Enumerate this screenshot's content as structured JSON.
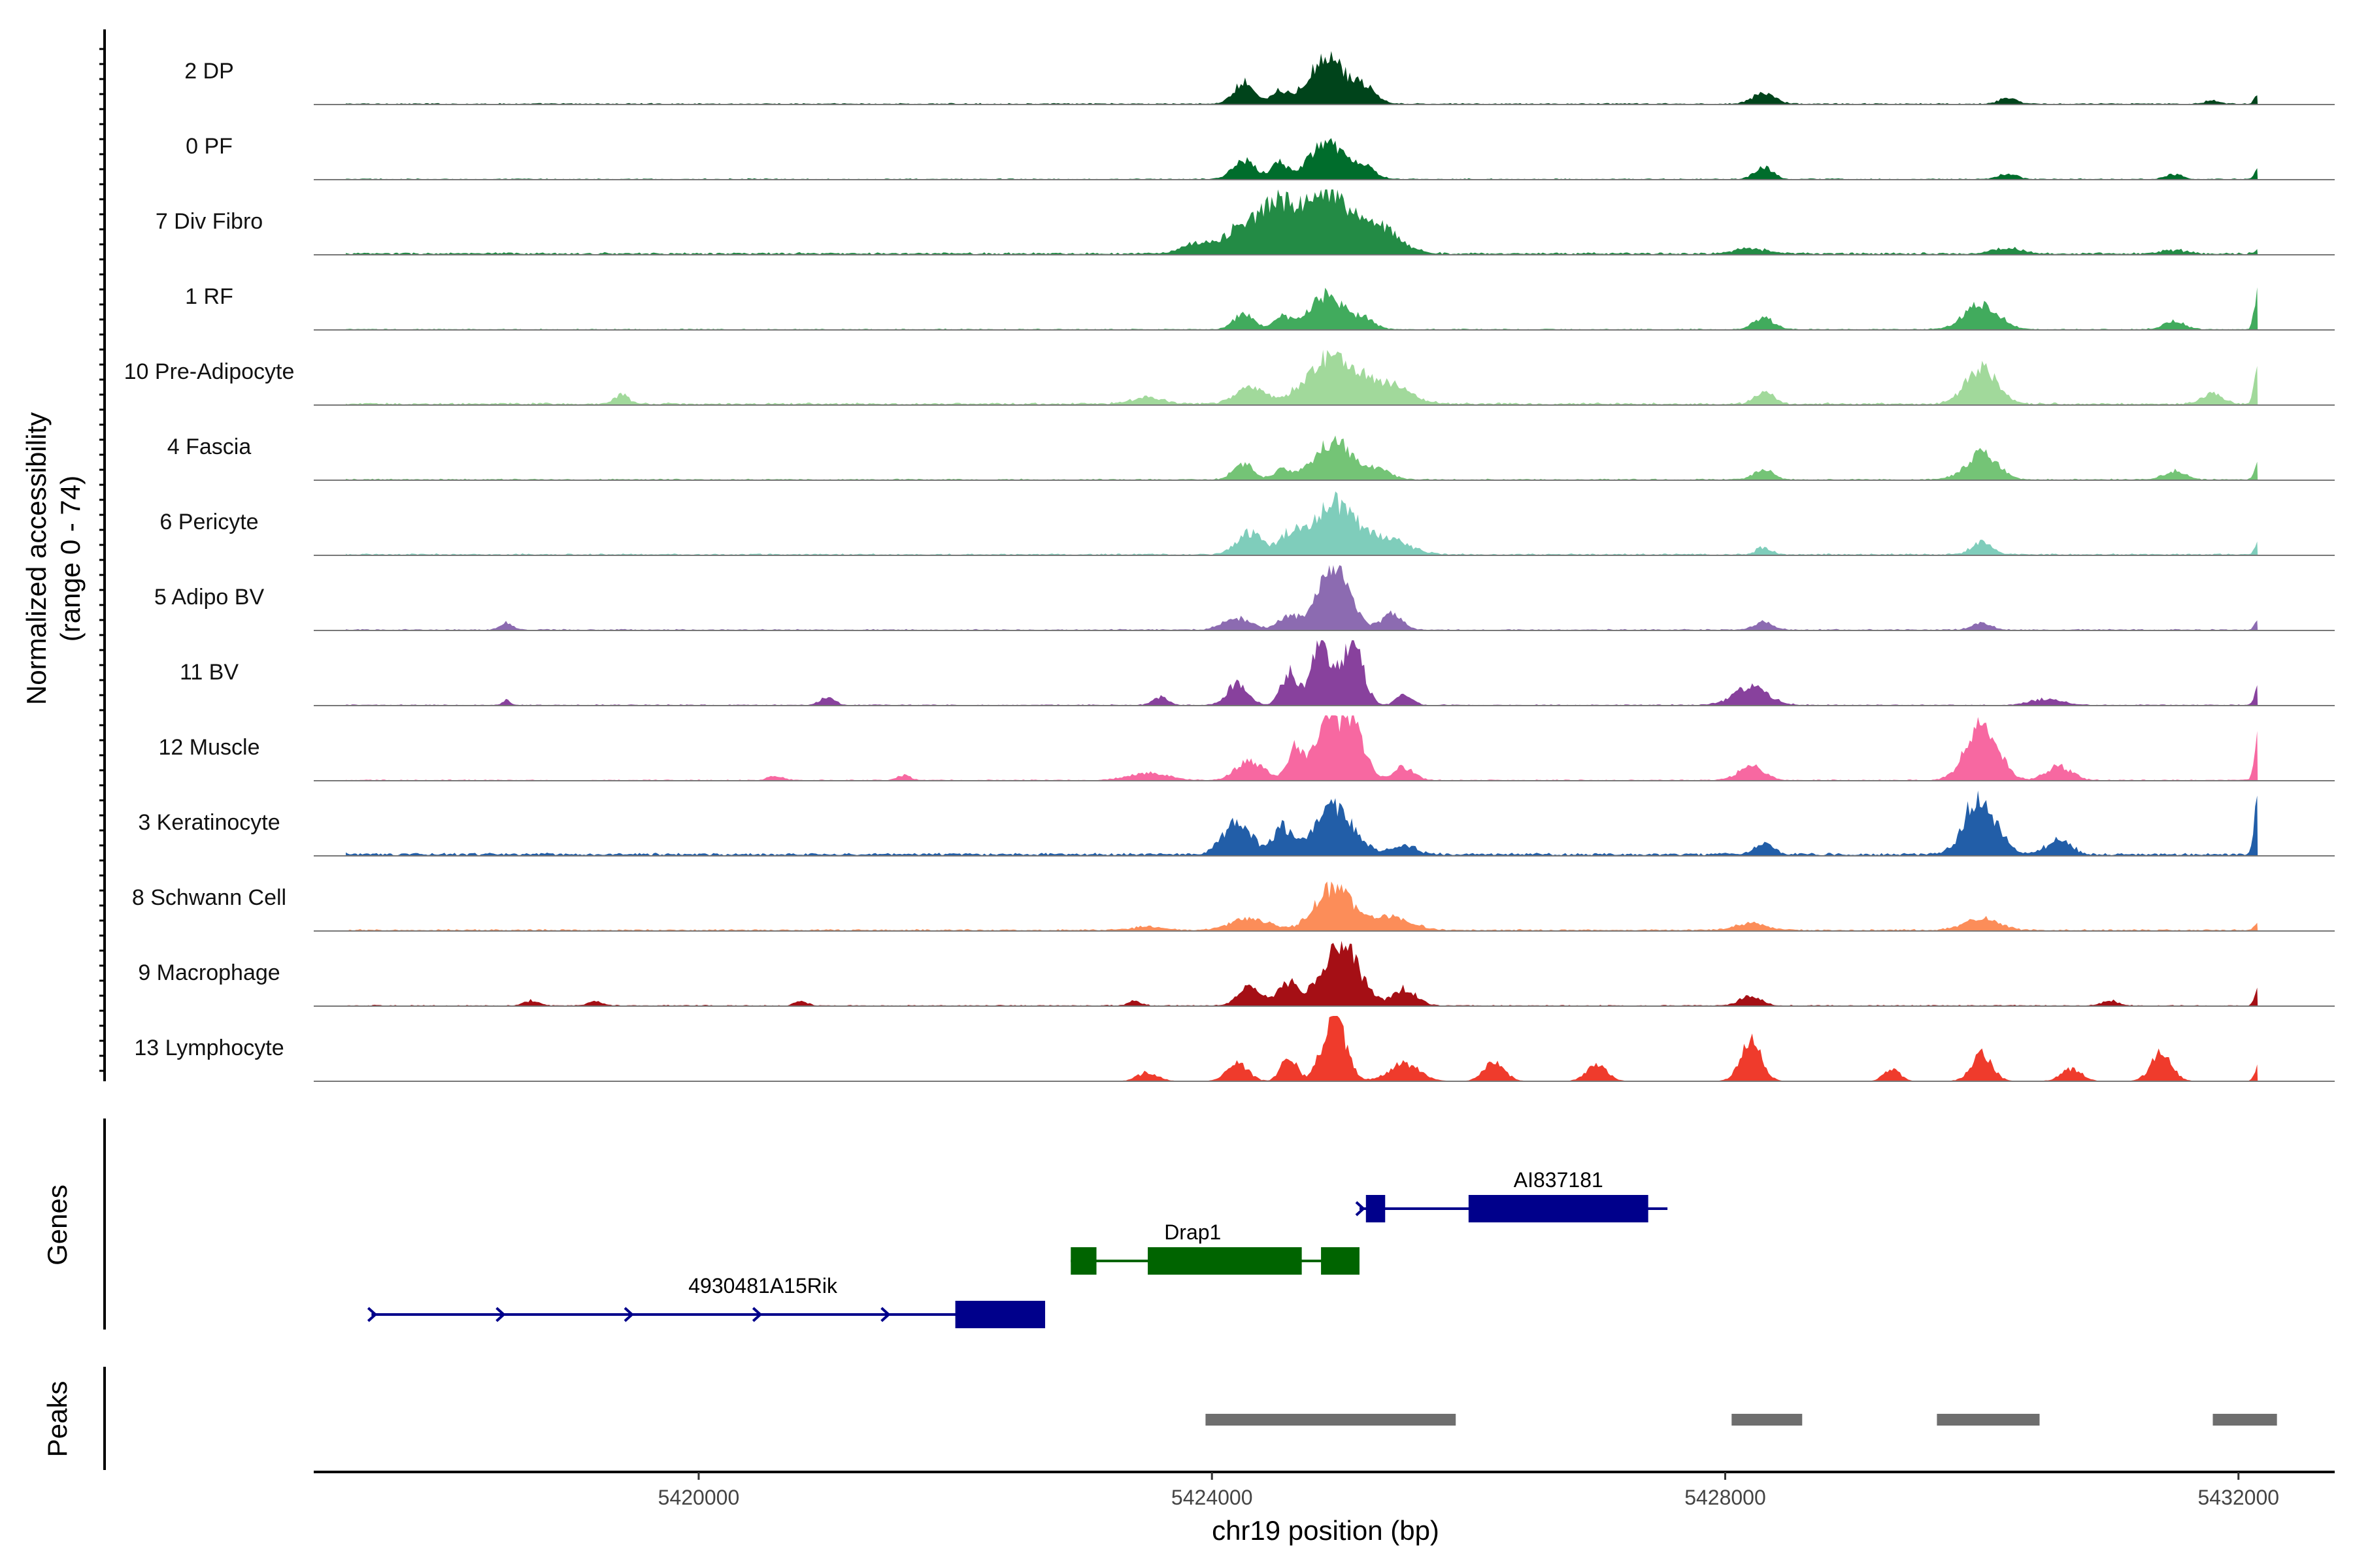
{
  "chart_data": {
    "type": "area",
    "title": "",
    "xlabel": "chr19 position (bp)",
    "ylabel": "Normalized accessibility",
    "ylabel_range": "(range 0 - 74)",
    "xlim": [
      5417000,
      5432750
    ],
    "ylim": [
      0,
      74
    ],
    "x_ticks": [
      5420000,
      5424000,
      5428000,
      5432000
    ],
    "x_tick_labels": [
      "5420000",
      "5424000",
      "5428000",
      "5432000"
    ],
    "genes_label": "Genes",
    "peaks_label": "Peaks",
    "series": [
      {
        "name": "2 DP",
        "color": "#00441b",
        "peaks": [
          [
            5424250,
            25,
            80
          ],
          [
            5424520,
            14,
            60
          ],
          [
            5424900,
            52,
            150
          ],
          [
            5425200,
            15,
            80
          ],
          [
            5428300,
            12,
            90
          ],
          [
            5430200,
            7,
            70
          ],
          [
            5431800,
            4,
            60
          ],
          [
            5432150,
            10,
            25
          ]
        ],
        "base": 1.2
      },
      {
        "name": "0 PF",
        "color": "#006d2c",
        "peaks": [
          [
            5424250,
            22,
            90
          ],
          [
            5424520,
            18,
            60
          ],
          [
            5424900,
            42,
            140
          ],
          [
            5425200,
            12,
            80
          ],
          [
            5428300,
            14,
            70
          ],
          [
            5430200,
            6,
            70
          ],
          [
            5431500,
            5,
            70
          ],
          [
            5432150,
            12,
            25
          ]
        ],
        "base": 1.0
      },
      {
        "name": "7 Div Fibro",
        "color": "#238b45",
        "peaks": [
          [
            5423900,
            12,
            130
          ],
          [
            5424200,
            25,
            110
          ],
          [
            5424500,
            58,
            140
          ],
          [
            5424900,
            74,
            160
          ],
          [
            5425300,
            30,
            160
          ],
          [
            5428200,
            6,
            120
          ],
          [
            5430200,
            6,
            110
          ],
          [
            5431500,
            4,
            100
          ],
          [
            5432150,
            5,
            25
          ]
        ],
        "base": 2.0
      },
      {
        "name": "1 RF",
        "color": "#41ab5d",
        "peaks": [
          [
            5424250,
            18,
            80
          ],
          [
            5424550,
            14,
            60
          ],
          [
            5424900,
            40,
            140
          ],
          [
            5425200,
            10,
            80
          ],
          [
            5428300,
            13,
            80
          ],
          [
            5430000,
            30,
            130
          ],
          [
            5431500,
            10,
            80
          ],
          [
            5432150,
            48,
            25
          ]
        ],
        "base": 1.0
      },
      {
        "name": "10 Pre-Adipocyte",
        "color": "#a1d99b",
        "peaks": [
          [
            5419400,
            12,
            50
          ],
          [
            5423500,
            8,
            120
          ],
          [
            5424300,
            18,
            120
          ],
          [
            5424950,
            55,
            200
          ],
          [
            5425400,
            20,
            150
          ],
          [
            5428300,
            15,
            70
          ],
          [
            5430000,
            42,
            120
          ],
          [
            5431800,
            12,
            80
          ],
          [
            5432150,
            42,
            25
          ]
        ],
        "base": 2.0
      },
      {
        "name": "4 Fascia",
        "color": "#74c476",
        "peaks": [
          [
            5424250,
            18,
            80
          ],
          [
            5424550,
            12,
            60
          ],
          [
            5424950,
            45,
            150
          ],
          [
            5425300,
            10,
            100
          ],
          [
            5428300,
            13,
            70
          ],
          [
            5430000,
            30,
            120
          ],
          [
            5431500,
            10,
            80
          ],
          [
            5432150,
            20,
            25
          ]
        ],
        "base": 1.2
      },
      {
        "name": "6 Pericyte",
        "color": "#7fcdbb",
        "peaks": [
          [
            5424300,
            25,
            100
          ],
          [
            5424600,
            18,
            80
          ],
          [
            5424950,
            60,
            180
          ],
          [
            5425400,
            15,
            150
          ],
          [
            5428300,
            8,
            60
          ],
          [
            5430000,
            15,
            80
          ],
          [
            5432150,
            15,
            25
          ]
        ],
        "base": 1.5
      },
      {
        "name": "5 Adipo BV",
        "color": "#8c6bb1",
        "peaks": [
          [
            5418500,
            8,
            50
          ],
          [
            5424200,
            14,
            110
          ],
          [
            5424600,
            16,
            80
          ],
          [
            5424950,
            74,
            120
          ],
          [
            5425400,
            18,
            80
          ],
          [
            5428300,
            9,
            70
          ],
          [
            5430000,
            8,
            70
          ],
          [
            5432150,
            10,
            25
          ]
        ],
        "base": 1.2
      },
      {
        "name": "11 BV",
        "color": "#88419d",
        "peaks": [
          [
            5418500,
            6,
            30
          ],
          [
            5421000,
            9,
            60
          ],
          [
            5423600,
            9,
            60
          ],
          [
            5424200,
            25,
            80
          ],
          [
            5424600,
            38,
            60
          ],
          [
            5424850,
            74,
            80
          ],
          [
            5425100,
            70,
            80
          ],
          [
            5425500,
            12,
            60
          ],
          [
            5428200,
            22,
            130
          ],
          [
            5430500,
            7,
            120
          ],
          [
            5432150,
            22,
            25
          ]
        ],
        "base": 1.0
      },
      {
        "name": "12 Muscle",
        "color": "#f768a1",
        "peaks": [
          [
            5420600,
            5,
            60
          ],
          [
            5421600,
            6,
            50
          ],
          [
            5423500,
            8,
            150
          ],
          [
            5424300,
            22,
            110
          ],
          [
            5424650,
            38,
            60
          ],
          [
            5424900,
            70,
            90
          ],
          [
            5425100,
            60,
            90
          ],
          [
            5425500,
            15,
            80
          ],
          [
            5428200,
            16,
            100
          ],
          [
            5430000,
            68,
            120
          ],
          [
            5430600,
            16,
            100
          ],
          [
            5432150,
            55,
            25
          ]
        ],
        "base": 1.0
      },
      {
        "name": "3 Keratinocyte",
        "color": "#225ea8",
        "peaks": [
          [
            5424200,
            38,
            110
          ],
          [
            5424550,
            30,
            70
          ],
          [
            5424950,
            55,
            150
          ],
          [
            5425500,
            10,
            100
          ],
          [
            5428300,
            13,
            70
          ],
          [
            5429900,
            12,
            60
          ],
          [
            5430000,
            60,
            120
          ],
          [
            5430600,
            18,
            90
          ],
          [
            5432150,
            64,
            25
          ]
        ],
        "base": 2.5
      },
      {
        "name": "8 Schwann Cell",
        "color": "#fc8d59",
        "peaks": [
          [
            5423500,
            4,
            120
          ],
          [
            5424300,
            14,
            150
          ],
          [
            5424950,
            50,
            140
          ],
          [
            5425400,
            15,
            150
          ],
          [
            5428200,
            8,
            120
          ],
          [
            5430000,
            14,
            130
          ],
          [
            5432150,
            8,
            25
          ]
        ],
        "base": 1.5
      },
      {
        "name": "9 Macrophage",
        "color": "#a50f15",
        "peaks": [
          [
            5418700,
            6,
            60
          ],
          [
            5419200,
            5,
            60
          ],
          [
            5420800,
            5,
            50
          ],
          [
            5423400,
            5,
            50
          ],
          [
            5424300,
            22,
            90
          ],
          [
            5424600,
            25,
            80
          ],
          [
            5425000,
            74,
            140
          ],
          [
            5425500,
            20,
            90
          ],
          [
            5428200,
            12,
            80
          ],
          [
            5431000,
            6,
            60
          ],
          [
            5432150,
            20,
            25
          ]
        ],
        "base": 1.0
      },
      {
        "name": "13 Lymphocyte",
        "color": "#ef3b2c",
        "peaks": [
          [
            5423500,
            10,
            80
          ],
          [
            5424200,
            22,
            80
          ],
          [
            5424600,
            30,
            60
          ],
          [
            5424950,
            74,
            90
          ],
          [
            5425500,
            20,
            120
          ],
          [
            5426200,
            22,
            80
          ],
          [
            5427000,
            18,
            80
          ],
          [
            5428200,
            48,
            80
          ],
          [
            5429300,
            15,
            60
          ],
          [
            5430000,
            32,
            80
          ],
          [
            5430700,
            14,
            80
          ],
          [
            5431400,
            32,
            80
          ],
          [
            5432150,
            18,
            25
          ]
        ],
        "base": 0.4
      }
    ],
    "genes": [
      {
        "name": "4930481A15Rik",
        "color": "#00008b",
        "row": 2,
        "strand": "+",
        "line": [
          5417450,
          5422200
        ],
        "exons": [
          [
            5422000,
            5422700
          ]
        ],
        "arrows": [
          5417450,
          5418450,
          5419450,
          5420450,
          5421450
        ]
      },
      {
        "name": "Drap1",
        "color": "#006400",
        "row": 1,
        "strand": "",
        "line": [
          5422900,
          5424950
        ],
        "exons": [
          [
            5422900,
            5423100
          ],
          [
            5423500,
            5424700
          ],
          [
            5424850,
            5425150
          ]
        ],
        "arrows": []
      },
      {
        "name": "AI837181",
        "color": "#00008b",
        "row": 0,
        "strand": "+",
        "line": [
          5425150,
          5427550
        ],
        "exons": [
          [
            5425200,
            5425350
          ],
          [
            5426000,
            5427400
          ]
        ],
        "arrows": [
          5425150
        ]
      }
    ],
    "peaks_regions": [
      [
        5423950,
        5425900
      ],
      [
        5428050,
        5428600
      ],
      [
        5429650,
        5430450
      ],
      [
        5431800,
        5432300
      ]
    ]
  }
}
